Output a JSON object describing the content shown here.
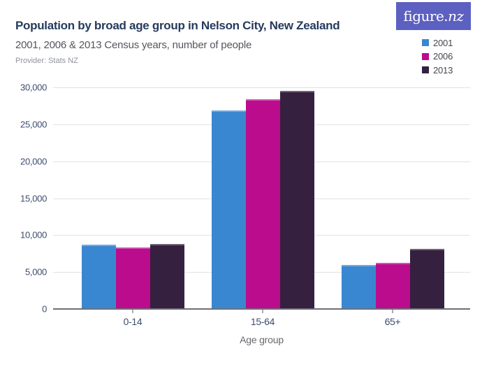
{
  "header": {
    "title": "Population by broad age group in Nelson City, New Zealand",
    "subtitle": "2001, 2006 & 2013 Census years, number of people",
    "provider": "Provider: Stats NZ",
    "logo_text_main": "figure.",
    "logo_text_suffix": "nz",
    "logo_background": "#5c60c0"
  },
  "colors": {
    "title_text": "#263a5e",
    "subtitle_text": "#53565c",
    "provider_text": "#8f939a",
    "axis_tick_text": "#3e4e6e",
    "axis_line": "#6e7078",
    "gridline": "#e2e2e7",
    "x_axis_title_text": "#67696d",
    "legend_text": "#43474e"
  },
  "chart_data": {
    "type": "bar",
    "title": "Population by broad age group in Nelson City, New Zealand",
    "subtitle": "2001, 2006 & 2013 Census years, number of people",
    "categories": [
      "0-14",
      "15-64",
      "65+"
    ],
    "series": [
      {
        "name": "2001",
        "color": "#3a87d1",
        "values": [
          8700,
          26900,
          5950
        ]
      },
      {
        "name": "2006",
        "color": "#bb0c8e",
        "values": [
          8300,
          28350,
          6250
        ]
      },
      {
        "name": "2013",
        "color": "#36203f",
        "values": [
          8800,
          29550,
          8100
        ]
      }
    ],
    "xlabel": "Age group",
    "ylabel": "",
    "ylim": [
      0,
      30000
    ],
    "yticks": [
      0,
      5000,
      10000,
      15000,
      20000,
      25000,
      30000
    ],
    "ytick_labels": [
      "0",
      "5,000",
      "10,000",
      "15,000",
      "20,000",
      "25,000",
      "30,000"
    ],
    "grid": true,
    "legend_position": "top-right"
  }
}
